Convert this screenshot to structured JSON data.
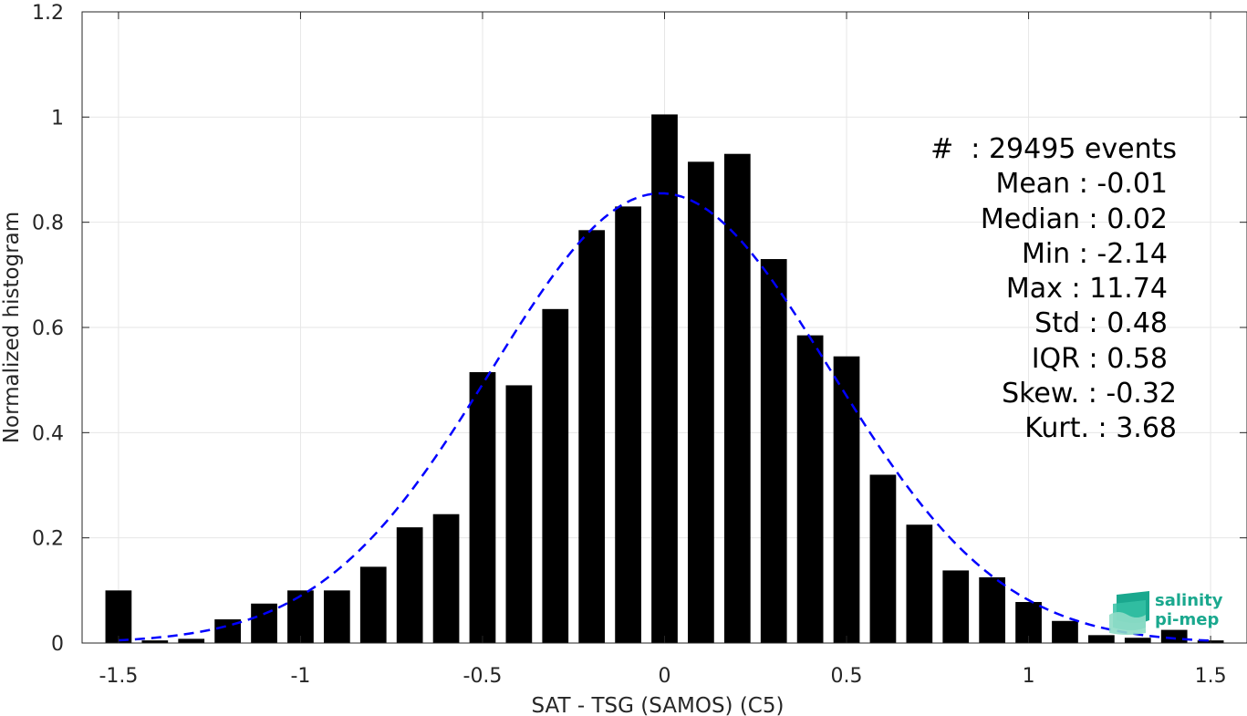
{
  "chart_data": {
    "type": "bar",
    "xlabel": "SAT - TSG (SAMOS) (C5)",
    "ylabel": "Normalized histogram",
    "xlim": [
      -1.6,
      1.6
    ],
    "ylim": [
      0,
      1.2
    ],
    "xticks": [
      -1.5,
      -1,
      -0.5,
      0,
      0.5,
      1,
      1.5
    ],
    "xtick_labels": [
      "-1.5",
      "-1",
      "-0.5",
      "0",
      "0.5",
      "1",
      "1.5"
    ],
    "yticks": [
      0,
      0.2,
      0.4,
      0.6,
      0.8,
      1,
      1.2
    ],
    "ytick_labels": [
      "0",
      "0.2",
      "0.4",
      "0.6",
      "0.8",
      "1",
      "1.2"
    ],
    "grid": true,
    "bin_width": 0.1,
    "bins": [
      {
        "x": -1.5,
        "y": 0.1
      },
      {
        "x": -1.4,
        "y": 0.005
      },
      {
        "x": -1.3,
        "y": 0.008
      },
      {
        "x": -1.2,
        "y": 0.045
      },
      {
        "x": -1.1,
        "y": 0.075
      },
      {
        "x": -1.0,
        "y": 0.1
      },
      {
        "x": -0.9,
        "y": 0.1
      },
      {
        "x": -0.8,
        "y": 0.145
      },
      {
        "x": -0.7,
        "y": 0.22
      },
      {
        "x": -0.6,
        "y": 0.245
      },
      {
        "x": -0.5,
        "y": 0.515
      },
      {
        "x": -0.4,
        "y": 0.49
      },
      {
        "x": -0.3,
        "y": 0.635
      },
      {
        "x": -0.2,
        "y": 0.785
      },
      {
        "x": -0.1,
        "y": 0.83
      },
      {
        "x": 0.0,
        "y": 1.005
      },
      {
        "x": 0.1,
        "y": 0.915
      },
      {
        "x": 0.2,
        "y": 0.93
      },
      {
        "x": 0.3,
        "y": 0.73
      },
      {
        "x": 0.4,
        "y": 0.585
      },
      {
        "x": 0.5,
        "y": 0.545
      },
      {
        "x": 0.6,
        "y": 0.32
      },
      {
        "x": 0.7,
        "y": 0.225
      },
      {
        "x": 0.8,
        "y": 0.138
      },
      {
        "x": 0.9,
        "y": 0.125
      },
      {
        "x": 1.0,
        "y": 0.078
      },
      {
        "x": 1.1,
        "y": 0.042
      },
      {
        "x": 1.2,
        "y": 0.015
      },
      {
        "x": 1.3,
        "y": 0.01
      },
      {
        "x": 1.4,
        "y": 0.025
      },
      {
        "x": 1.5,
        "y": 0.005
      }
    ],
    "fit_curve": {
      "type": "gaussian",
      "style": "dashed",
      "color": "#0000ff",
      "mean": -0.01,
      "std": 0.466,
      "peak": 0.855,
      "x_range": [
        -1.5,
        1.5
      ]
    },
    "bar_color": "#000000"
  },
  "stats": [
    "#  : 29495 events",
    "Mean : -0.01",
    "Median : 0.02",
    "Min : -2.14",
    "Max : 11.74",
    "Std : 0.48",
    "IQR : 0.58",
    "Skew. : -0.32",
    "Kurt. : 3.68"
  ],
  "logo": {
    "line1": "salinity",
    "line2": "pi-mep",
    "color": "#1aa88e"
  }
}
